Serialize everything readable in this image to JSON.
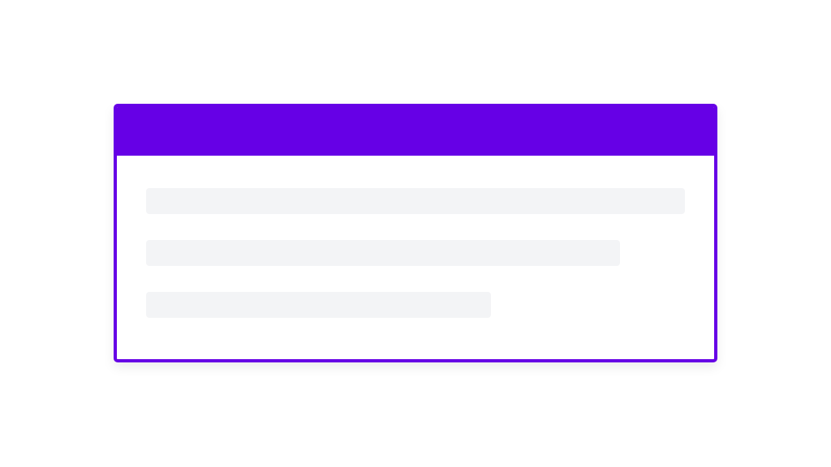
{
  "colors": {
    "accent": "#6600e6",
    "skeleton": "#f3f4f6"
  },
  "card": {
    "skeleton_lines": [
      {
        "fill_fraction": 1.0
      },
      {
        "fill_fraction": 0.88
      },
      {
        "fill_fraction": 0.64
      }
    ]
  }
}
